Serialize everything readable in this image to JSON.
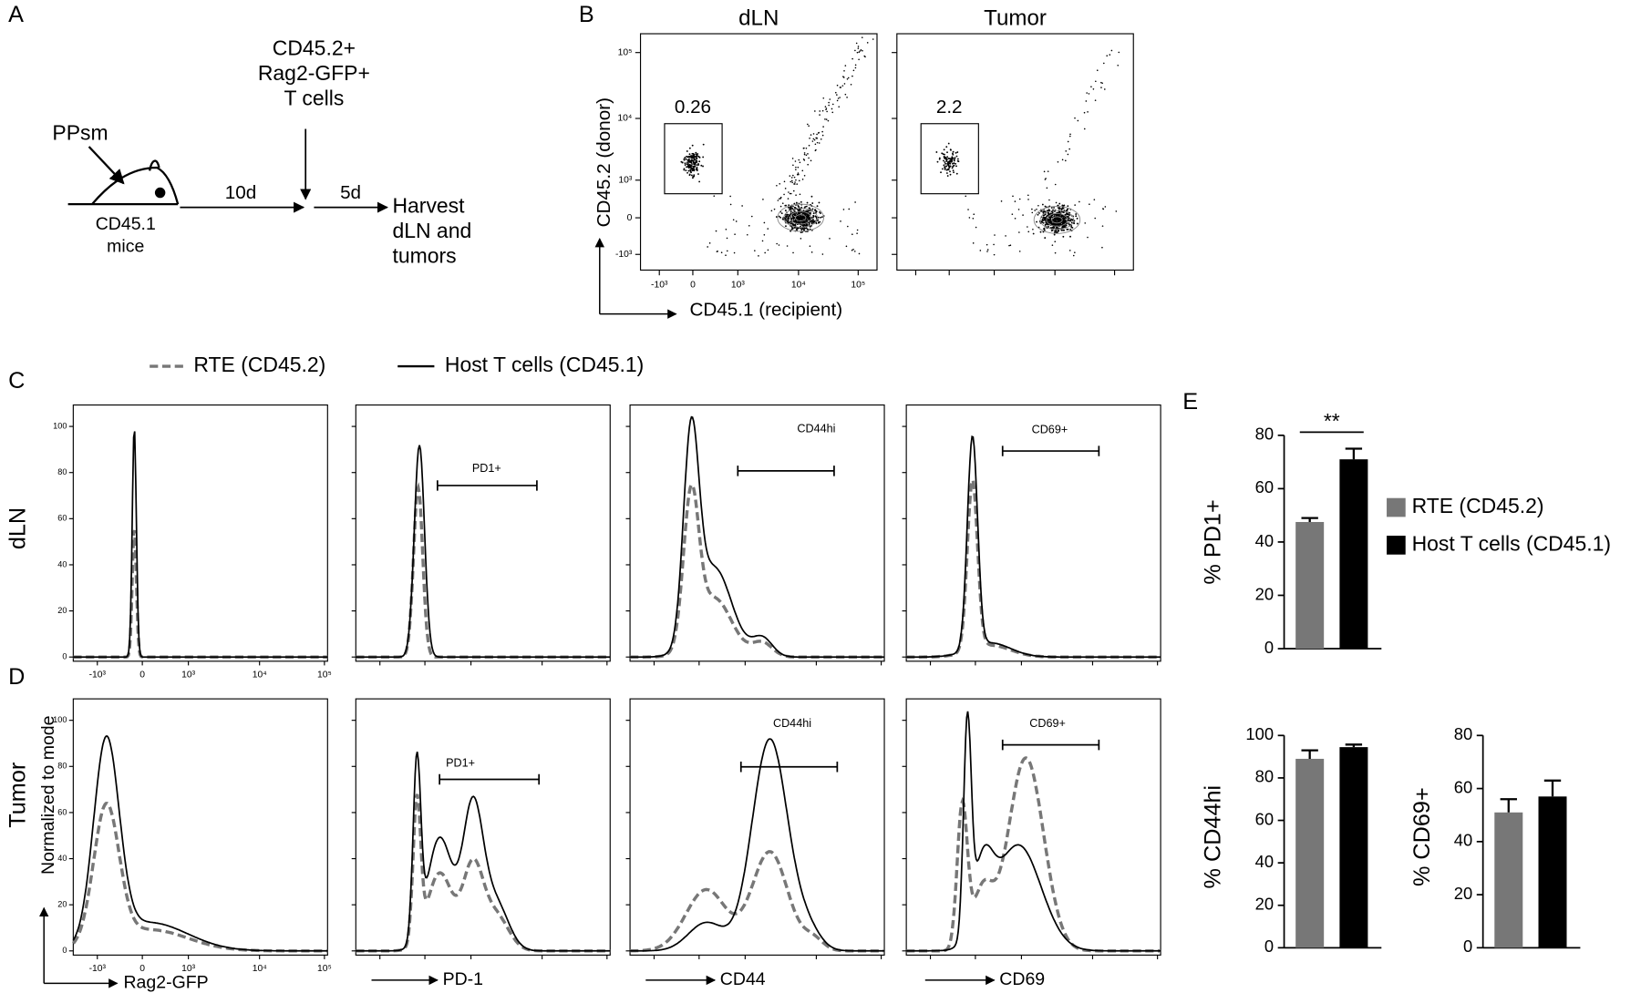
{
  "panel_labels": [
    "A",
    "B",
    "C",
    "D",
    "E"
  ],
  "schematic": {
    "injection": "PPsm",
    "mouse_lines": [
      "CD45.1",
      "mice"
    ],
    "cells_lines": [
      "CD45.2+",
      "Rag2-GFP+",
      "T cells"
    ],
    "step1": "10d",
    "step2": "5d",
    "harvest_lines": [
      "Harvest",
      "dLN and",
      "tumors"
    ]
  },
  "flow": {
    "columns": [
      "dLN",
      "Tumor"
    ],
    "gates": [
      0.26,
      2.2
    ],
    "y_label": "CD45.2 (donor)",
    "x_label": "CD45.1 (recipient)",
    "ticks": [
      {
        "value": -1000,
        "label": "-10³"
      },
      0,
      {
        "value": 1000,
        "label": "10³"
      },
      {
        "value": 10000,
        "label": "10⁴"
      },
      {
        "value": 100000,
        "label": "10⁵"
      }
    ]
  },
  "legend": {
    "rte": "RTE (CD45.2)",
    "host": "Host T cells (CD45.1)"
  },
  "histograms": {
    "rows": [
      "dLN",
      "Tumor"
    ],
    "y_label": "Normalized to mode",
    "yticks": [
      0,
      20,
      40,
      60,
      80,
      100
    ],
    "xticks": [
      {
        "value": -1000,
        "label": "-10³"
      },
      0,
      {
        "value": 1000,
        "label": "10³"
      },
      {
        "value": 10000,
        "label": "10⁴"
      },
      {
        "value": 100000,
        "label": "10⁵"
      }
    ],
    "markers": [
      "Rag2-GFP",
      "PD-1",
      "CD44",
      "CD69"
    ],
    "gates": [
      "PD1+",
      "CD44hi",
      "CD69+"
    ]
  },
  "chart_data": [
    {
      "type": "bar",
      "y_label": "% PD1+",
      "ylim": [
        0,
        80
      ],
      "yticks": [
        0,
        20,
        40,
        60,
        80
      ],
      "annotation": "**",
      "series": [
        {
          "name": "RTE (CD45.2)",
          "color": "#777777",
          "values": [
            47.5
          ],
          "errors": [
            1.5
          ]
        },
        {
          "name": "Host T cells (CD45.1)",
          "color": "#000000",
          "values": [
            71
          ],
          "errors": [
            4
          ]
        }
      ]
    },
    {
      "type": "bar",
      "y_label": "% CD44hi",
      "ylim": [
        0,
        100
      ],
      "yticks": [
        0,
        20,
        40,
        60,
        80,
        100
      ],
      "series": [
        {
          "color": "#777777",
          "values": [
            89
          ],
          "errors": [
            4
          ]
        },
        {
          "color": "#000000",
          "values": [
            94.5
          ],
          "errors": [
            1.2
          ]
        }
      ]
    },
    {
      "type": "bar",
      "y_label": "% CD69+",
      "ylim": [
        0,
        80
      ],
      "yticks": [
        0,
        20,
        40,
        60,
        80
      ],
      "series": [
        {
          "color": "#777777",
          "values": [
            51
          ],
          "errors": [
            5
          ]
        },
        {
          "color": "#000000",
          "values": [
            57
          ],
          "errors": [
            6
          ]
        }
      ]
    }
  ]
}
